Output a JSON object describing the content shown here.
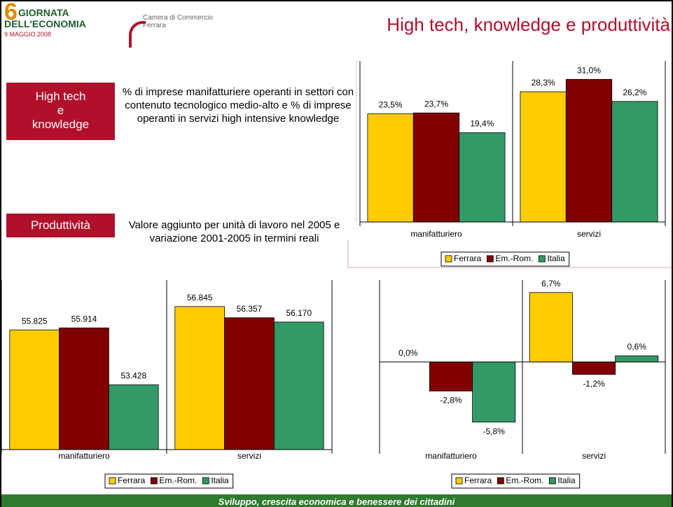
{
  "header": {
    "logo": {
      "number": "6",
      "line1": "GIORNATA",
      "line2": "DELL'ECONOMIA",
      "date": "9 MAGGIO 2008",
      "org1": "Camera di Commercio",
      "org2": "Ferrara"
    },
    "title": "High tech, knowledge e produttività"
  },
  "sections": [
    {
      "label": [
        "High tech",
        "e",
        "knowledge"
      ],
      "description": "% di imprese manifatturiere operanti in settori con contenuto tecnologico medio-alto e % di imprese operanti in servizi high intensive knowledge"
    },
    {
      "label": [
        "Produttività"
      ],
      "description": "Valore aggiunto per unità di lavoro nel 2005 e variazione 2001-2005 in termini reali"
    }
  ],
  "footer": "Sviluppo, crescita economica e benessere dei cittadini",
  "chart_data": [
    {
      "type": "bar",
      "categories": [
        "manifatturiero",
        "servizi"
      ],
      "ylim": [
        0,
        35
      ],
      "legend": "bottom",
      "series": [
        {
          "name": "Ferrara",
          "color": "#ffcc00",
          "values": [
            23.5,
            28.3
          ],
          "value_labels": [
            "23,5%",
            "28,3%"
          ]
        },
        {
          "name": "Em.-Rom.",
          "color": "#800000",
          "values": [
            23.7,
            31.0
          ],
          "value_labels": [
            "23,7%",
            "31,0%"
          ]
        },
        {
          "name": "Italia",
          "color": "#339966",
          "values": [
            19.4,
            26.2
          ],
          "value_labels": [
            "19,4%",
            "26,2%"
          ]
        }
      ]
    },
    {
      "type": "bar",
      "categories": [
        "manifatturiero",
        "servizi"
      ],
      "ylim": [
        50600,
        58000
      ],
      "legend": "bottom",
      "series": [
        {
          "name": "Ferrara",
          "color": "#ffcc00",
          "values": [
            55825,
            56845
          ],
          "value_labels": [
            "55.825",
            "56.845"
          ]
        },
        {
          "name": "Em.-Rom.",
          "color": "#800000",
          "values": [
            55914,
            56357
          ],
          "value_labels": [
            "55.914",
            "56.357"
          ]
        },
        {
          "name": "Italia",
          "color": "#339966",
          "values": [
            53428,
            56170
          ],
          "value_labels": [
            "53.428",
            "56.170"
          ]
        }
      ]
    },
    {
      "type": "bar",
      "categories": [
        "manifatturiero",
        "servizi"
      ],
      "ylim": [
        -8.45,
        7.9
      ],
      "legend": "bottom",
      "series": [
        {
          "name": "Ferrara",
          "color": "#ffcc00",
          "values": [
            0.0,
            6.7
          ],
          "value_labels": [
            "0,0%",
            "6,7%"
          ]
        },
        {
          "name": "Em.-Rom.",
          "color": "#800000",
          "values": [
            -2.8,
            -1.2
          ],
          "value_labels": [
            "-2,8%",
            "-1,2%"
          ]
        },
        {
          "name": "Italia",
          "color": "#339966",
          "values": [
            -5.8,
            0.6
          ],
          "value_labels": [
            "-5,8%",
            "0,6%"
          ]
        }
      ]
    }
  ]
}
